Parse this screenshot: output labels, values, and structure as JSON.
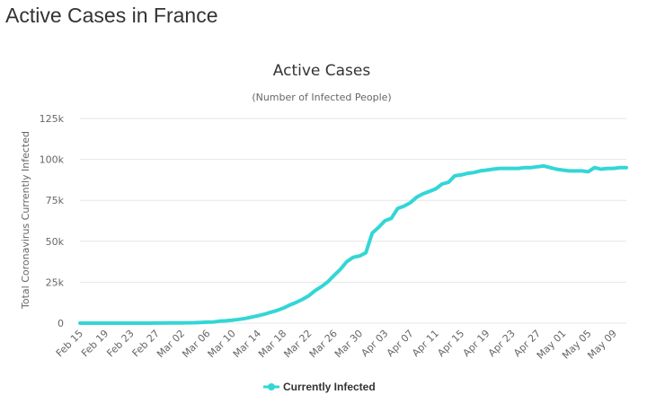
{
  "page": {
    "heading": "Active Cases in France"
  },
  "chart_data": {
    "type": "line",
    "title": "Active Cases",
    "subtitle": "(Number of Infected People)",
    "ylabel": "Total Coronavirus Currently Infected",
    "xlabel": "",
    "ylim": [
      0,
      125000
    ],
    "y_ticks": [
      0,
      25000,
      50000,
      75000,
      100000,
      125000
    ],
    "y_tick_labels": [
      "0",
      "25k",
      "50k",
      "75k",
      "100k",
      "125k"
    ],
    "x_tick_labels": [
      "Feb 15",
      "Feb 19",
      "Feb 23",
      "Feb 27",
      "Mar 02",
      "Mar 06",
      "Mar 10",
      "Mar 14",
      "Mar 18",
      "Mar 22",
      "Mar 26",
      "Mar 30",
      "Apr 03",
      "Apr 07",
      "Apr 11",
      "Apr 15",
      "Apr 19",
      "Apr 23",
      "Apr 27",
      "May 01",
      "May 05",
      "May 09"
    ],
    "grid": true,
    "legend_position": "bottom-center",
    "colors": {
      "series": "#33d6d6",
      "grid": "#e6e6e6",
      "text": "#666666"
    },
    "categories": [
      "Feb 15",
      "Feb 16",
      "Feb 17",
      "Feb 18",
      "Feb 19",
      "Feb 20",
      "Feb 21",
      "Feb 22",
      "Feb 23",
      "Feb 24",
      "Feb 25",
      "Feb 26",
      "Feb 27",
      "Feb 28",
      "Feb 29",
      "Mar 01",
      "Mar 02",
      "Mar 03",
      "Mar 04",
      "Mar 05",
      "Mar 06",
      "Mar 07",
      "Mar 08",
      "Mar 09",
      "Mar 10",
      "Mar 11",
      "Mar 12",
      "Mar 13",
      "Mar 14",
      "Mar 15",
      "Mar 16",
      "Mar 17",
      "Mar 18",
      "Mar 19",
      "Mar 20",
      "Mar 21",
      "Mar 22",
      "Mar 23",
      "Mar 24",
      "Mar 25",
      "Mar 26",
      "Mar 27",
      "Mar 28",
      "Mar 29",
      "Mar 30",
      "Mar 31",
      "Apr 01",
      "Apr 02",
      "Apr 03",
      "Apr 04",
      "Apr 05",
      "Apr 06",
      "Apr 07",
      "Apr 08",
      "Apr 09",
      "Apr 10",
      "Apr 11",
      "Apr 12",
      "Apr 13",
      "Apr 14",
      "Apr 15",
      "Apr 16",
      "Apr 17",
      "Apr 18",
      "Apr 19",
      "Apr 20",
      "Apr 21",
      "Apr 22",
      "Apr 23",
      "Apr 24",
      "Apr 25",
      "Apr 26",
      "Apr 27",
      "Apr 28",
      "Apr 29",
      "Apr 30",
      "May 01",
      "May 02",
      "May 03",
      "May 04",
      "May 05",
      "May 06",
      "May 07",
      "May 08",
      "May 09",
      "May 10",
      "May 11"
    ],
    "series": [
      {
        "name": "Currently Infected",
        "values": [
          12,
          12,
          12,
          12,
          12,
          12,
          12,
          12,
          12,
          12,
          14,
          20,
          38,
          57,
          100,
          130,
          191,
          212,
          285,
          423,
          613,
          706,
          1209,
          1412,
          1784,
          2281,
          2876,
          3661,
          4499,
          5423,
          6633,
          7730,
          9134,
          10995,
          12612,
          14459,
          16689,
          19856,
          22300,
          25233,
          29155,
          32964,
          37575,
          40174,
          41000,
          43000,
          55000,
          58500,
          62500,
          64000,
          70000,
          71500,
          73500,
          77000,
          79000,
          80500,
          82000,
          85000,
          86000,
          90000,
          90500,
          91500,
          92000,
          93000,
          93500,
          94000,
          94500,
          94500,
          94500,
          94500,
          95000,
          95000,
          95500,
          96000,
          95000,
          94000,
          93500,
          93000,
          93000,
          93000,
          92500,
          95000,
          94000,
          94500,
          94500,
          95000,
          95000
        ]
      }
    ]
  }
}
